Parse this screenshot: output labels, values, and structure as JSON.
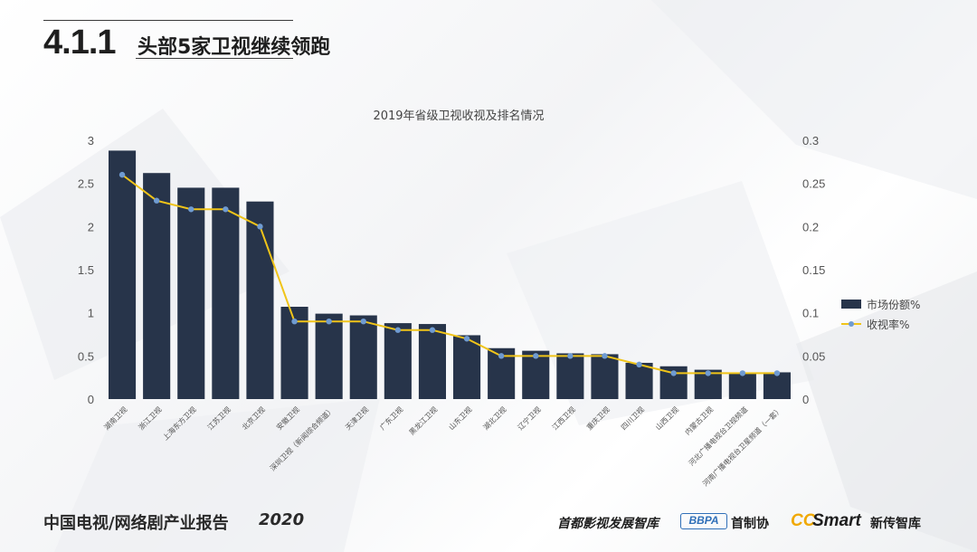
{
  "header": {
    "section_number": "4.1.1",
    "section_title": "头部5家卫视继续领跑"
  },
  "footer": {
    "report_title": "中国电视/网络剧产业报告",
    "report_year": "2020",
    "logos": {
      "think_tank": "首都影视发展智库",
      "bbpa": "BBPA",
      "association": "首制协",
      "cc": "CC",
      "smart": "Smart",
      "new_media": "新传智库"
    }
  },
  "colors": {
    "bar": "#27344a",
    "line": "#f0c419",
    "marker": "#6f9bd1",
    "text": "#555555"
  },
  "chart_data": {
    "type": "bar",
    "title": "2019年省级卫视收视及排名情况",
    "categories": [
      "湖南卫视",
      "浙江卫视",
      "上海东方卫视",
      "江苏卫视",
      "北京卫视",
      "安徽卫视",
      "深圳卫视（新闻综合频道）",
      "天津卫视",
      "广东卫视",
      "黑龙江卫视",
      "山东卫视",
      "湖北卫视",
      "辽宁卫视",
      "江西卫视",
      "重庆卫视",
      "四川卫视",
      "山西卫视",
      "内蒙古卫视",
      "河北广播电视台卫视频道",
      "河南广播电视台卫星频道（一套）"
    ],
    "series": [
      {
        "name": "市场份额%",
        "type": "bar",
        "axis": "left",
        "values": [
          2.88,
          2.62,
          2.45,
          2.45,
          2.29,
          1.07,
          0.99,
          0.97,
          0.88,
          0.87,
          0.74,
          0.59,
          0.56,
          0.53,
          0.52,
          0.42,
          0.38,
          0.34,
          0.3,
          0.31
        ]
      },
      {
        "name": "收视率%",
        "type": "line",
        "axis": "right",
        "values": [
          0.26,
          0.23,
          0.22,
          0.22,
          0.2,
          0.09,
          0.09,
          0.09,
          0.08,
          0.08,
          0.07,
          0.05,
          0.05,
          0.05,
          0.05,
          0.04,
          0.03,
          0.03,
          0.03,
          0.03
        ]
      }
    ],
    "left_axis": {
      "ylim": [
        0,
        3
      ],
      "ticks": [
        "0",
        "0.5",
        "1",
        "1.5",
        "2",
        "2.5",
        "3"
      ]
    },
    "right_axis": {
      "ylim": [
        0,
        0.3
      ],
      "ticks": [
        "0",
        "0.05",
        "0.1",
        "0.15",
        "0.2",
        "0.25",
        "0.3"
      ]
    },
    "grid": false,
    "legend_position": "right"
  }
}
